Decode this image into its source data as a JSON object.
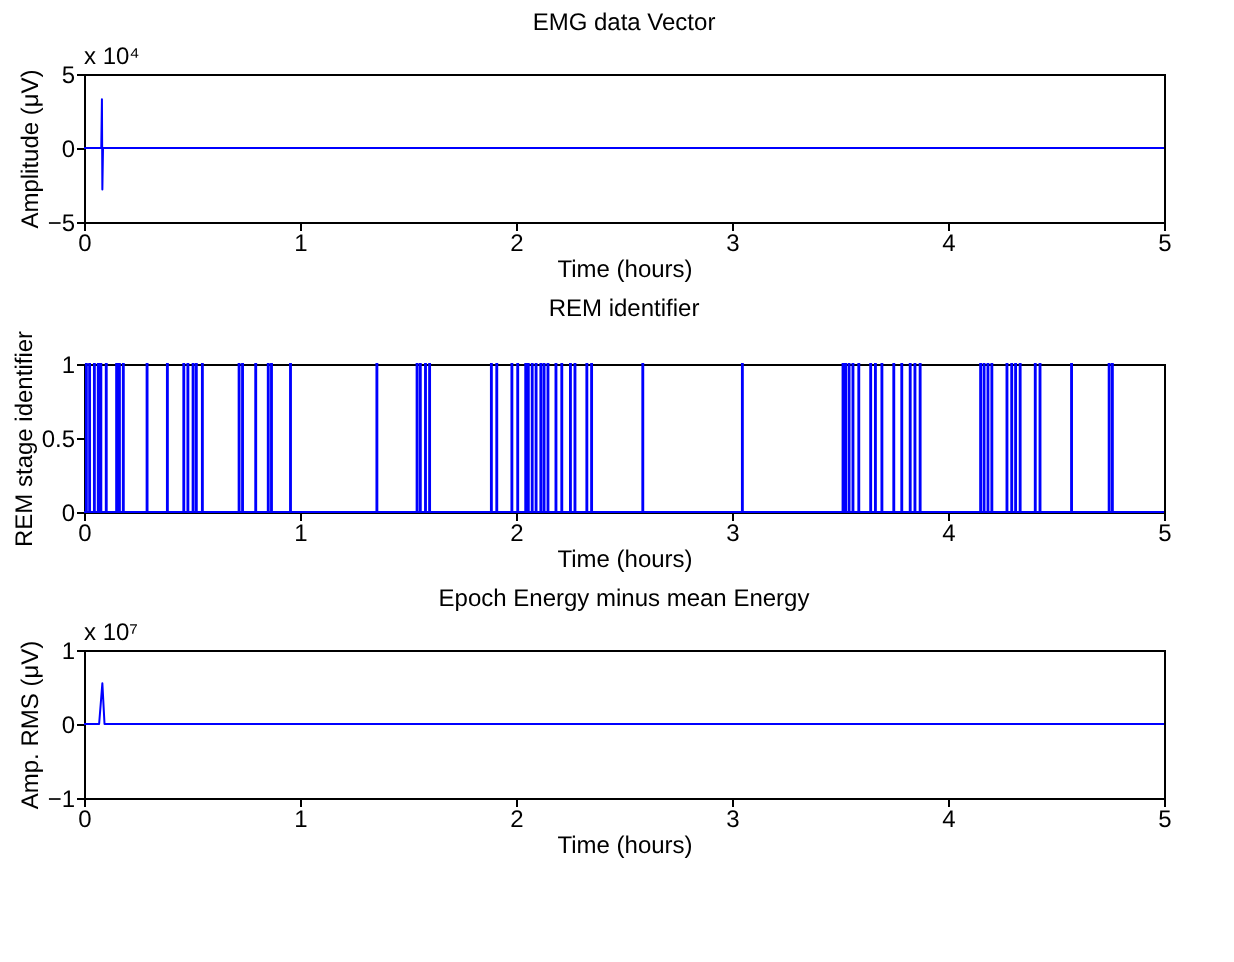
{
  "chart_data": [
    {
      "type": "line",
      "title": "EMG data Vector",
      "xlabel": "Time (hours)",
      "ylabel": "Amplitude (μV)",
      "annotations": [
        "x 10⁴"
      ],
      "xlim": [
        0,
        5
      ],
      "xticks": [
        0,
        1,
        2,
        3,
        4,
        5
      ],
      "ylim": [
        -5,
        5
      ],
      "yticks": [
        -5,
        0,
        5
      ],
      "grid": false,
      "series": [
        {
          "color": "#0000ff",
          "x": [
            0,
            0.08,
            0.083,
            0.085,
            0.088,
            5
          ],
          "values": [
            0,
            0,
            3.3,
            -2.8,
            0,
            0
          ]
        }
      ]
    },
    {
      "type": "step",
      "title": "REM identifier",
      "xlabel": "Time (hours)",
      "ylabel": "REM stage identifier",
      "xlim": [
        0,
        5
      ],
      "xticks": [
        0,
        1,
        2,
        3,
        4,
        5
      ],
      "ylim": [
        0,
        1
      ],
      "yticks": [
        0,
        0.5,
        1
      ],
      "grid": false,
      "series": [
        {
          "color": "#0000ff",
          "x": [
            0,
            0.009,
            0.013,
            0.024,
            0.028,
            0.046,
            0.05,
            0.064,
            0.068,
            0.076,
            0.08,
            0.101,
            0.105,
            0.149,
            0.153,
            0.162,
            0.166,
            0.18,
            0.184,
            0.29,
            0.294,
            0.384,
            0.388,
            0.46,
            0.464,
            0.479,
            0.483,
            0.503,
            0.507,
            0.518,
            0.522,
            0.546,
            0.55,
            0.716,
            0.72,
            0.732,
            0.736,
            0.793,
            0.797,
            0.851,
            0.855,
            0.866,
            0.87,
            0.954,
            0.958,
            1.354,
            1.358,
            1.54,
            1.544,
            1.555,
            1.559,
            1.579,
            1.583,
            1.598,
            1.602,
            1.884,
            1.888,
            1.909,
            1.913,
            1.979,
            1.983,
            2.006,
            2.01,
            2.043,
            2.047,
            2.055,
            2.059,
            2.073,
            2.077,
            2.091,
            2.095,
            2.113,
            2.117,
            2.128,
            2.132,
            2.146,
            2.15,
            2.183,
            2.187,
            2.21,
            2.214,
            2.25,
            2.254,
            2.271,
            2.275,
            2.326,
            2.33,
            2.348,
            2.352,
            2.585,
            2.589,
            3.046,
            3.05,
            3.512,
            3.516,
            3.524,
            3.528,
            3.54,
            3.544,
            3.558,
            3.562,
            3.585,
            3.589,
            3.64,
            3.644,
            3.662,
            3.666,
            3.692,
            3.696,
            3.747,
            3.751,
            3.784,
            3.788,
            3.823,
            3.827,
            3.845,
            3.849,
            3.869,
            3.873,
            4.149,
            4.153,
            4.165,
            4.169,
            4.183,
            4.187,
            4.201,
            4.205,
            4.271,
            4.275,
            4.293,
            4.297,
            4.311,
            4.315,
            4.332,
            4.336,
            4.402,
            4.406,
            4.424,
            4.428,
            4.57,
            4.574,
            4.744,
            4.748,
            4.759,
            4.763,
            5
          ],
          "values": [
            0,
            1,
            0,
            1,
            0,
            1,
            0,
            1,
            0,
            1,
            0,
            1,
            0,
            1,
            0,
            1,
            0,
            1,
            0,
            1,
            0,
            1,
            0,
            1,
            0,
            1,
            0,
            1,
            0,
            1,
            0,
            1,
            0,
            1,
            0,
            1,
            0,
            1,
            0,
            1,
            0,
            1,
            0,
            1,
            0,
            1,
            0,
            1,
            0,
            1,
            0,
            1,
            0,
            1,
            0,
            1,
            0,
            1,
            0,
            1,
            0,
            1,
            0,
            1,
            0,
            1,
            0,
            1,
            0,
            1,
            0,
            1,
            0,
            1,
            0,
            1,
            0,
            1,
            0,
            1,
            0,
            1,
            0,
            1,
            0,
            1,
            0,
            1,
            0,
            1,
            0,
            1,
            0,
            1,
            0,
            1,
            0,
            1,
            0,
            1,
            0,
            1,
            0,
            1,
            0,
            1,
            0,
            1,
            0,
            1,
            0,
            1,
            0,
            1,
            0,
            1,
            0,
            1,
            0,
            1,
            0,
            1,
            0,
            1,
            0,
            1,
            0,
            1,
            0,
            1,
            0,
            1,
            0,
            1,
            0,
            1,
            0,
            1,
            0,
            1,
            0,
            1,
            0,
            1,
            0,
            0
          ]
        }
      ]
    },
    {
      "type": "line",
      "title": "Epoch Energy minus mean Energy",
      "xlabel": "Time (hours)",
      "ylabel": "Amp. RMS (μV)",
      "annotations": [
        "x 10⁷"
      ],
      "xlim": [
        0,
        5
      ],
      "xticks": [
        0,
        1,
        2,
        3,
        4,
        5
      ],
      "ylim": [
        -1,
        1
      ],
      "yticks": [
        -1,
        0,
        1
      ],
      "grid": false,
      "series": [
        {
          "color": "#0000ff",
          "x": [
            0,
            0.07,
            0.085,
            0.095,
            5
          ],
          "values": [
            0,
            0,
            0.55,
            0,
            0
          ]
        }
      ]
    }
  ]
}
